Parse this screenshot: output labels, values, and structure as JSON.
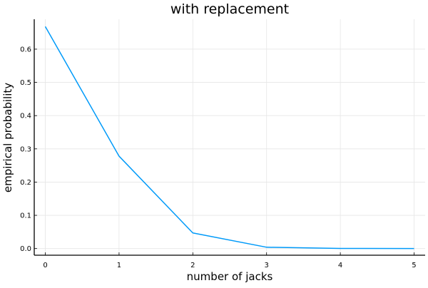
{
  "chart_data": {
    "type": "line",
    "title": "with replacement",
    "xlabel": "number of jacks",
    "ylabel": "empirical probability",
    "x": [
      0,
      1,
      2,
      3,
      4,
      5
    ],
    "series": [
      {
        "values": [
          0.668,
          0.278,
          0.047,
          0.004,
          0.0005,
          0.0001
        ],
        "color": "#009af9"
      }
    ],
    "xticks": [
      0,
      1,
      2,
      3,
      4,
      5
    ],
    "xtick_labels": [
      "0",
      "1",
      "2",
      "3",
      "4",
      "5"
    ],
    "yticks": [
      0.0,
      0.1,
      0.2,
      0.3,
      0.4,
      0.5,
      0.6
    ],
    "ytick_labels": [
      "0.0",
      "0.1",
      "0.2",
      "0.3",
      "0.4",
      "0.5",
      "0.6"
    ],
    "xlim": [
      -0.15,
      5.15
    ],
    "ylim": [
      -0.02,
      0.69
    ],
    "grid": true,
    "legend": "none"
  }
}
